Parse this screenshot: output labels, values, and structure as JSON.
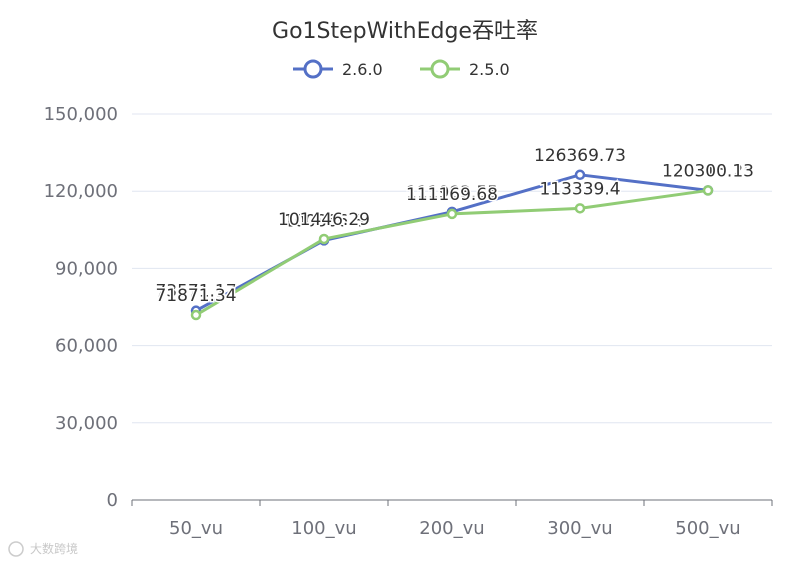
{
  "chart_data": {
    "type": "line",
    "title": "Go1StepWithEdge吞吐率",
    "categories": [
      "50_vu",
      "100_vu",
      "200_vu",
      "300_vu",
      "500_vu"
    ],
    "ylim": [
      0,
      150000
    ],
    "yticks": [
      "0",
      "30,000",
      "60,000",
      "90,000",
      "120,000",
      "150,000"
    ],
    "ytick_values": [
      0,
      30000,
      60000,
      90000,
      120000,
      150000
    ],
    "grid": true,
    "legend_position": "top-center",
    "series": [
      {
        "name": "2.6.0",
        "color": "#5470c6",
        "values": [
          73571.17,
          100866.3,
          111983.55,
          126369.73,
          120315.25
        ],
        "labels": [
          "73571.17",
          "100866.3",
          "111983.55",
          "126369.73",
          "120315.25"
        ]
      },
      {
        "name": "2.5.0",
        "color": "#91cc75",
        "values": [
          71871.34,
          101446.29,
          111169.68,
          113339.4,
          120300.13
        ],
        "labels": [
          "71871.34",
          "101446.29",
          "111169.68",
          "113339.4",
          "120300.13"
        ]
      }
    ]
  },
  "watermark": "大数跨境"
}
